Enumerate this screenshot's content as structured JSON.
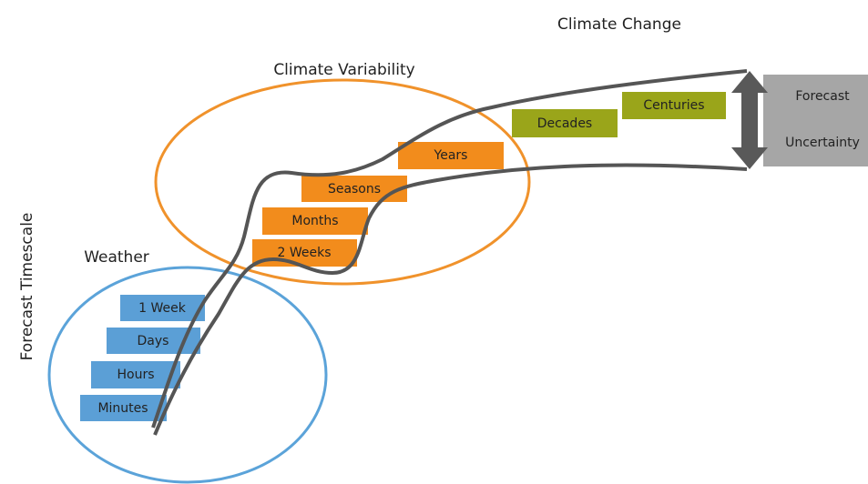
{
  "header": {
    "climate_change": "Climate Change",
    "climate_variability": "Climate Variability",
    "weather": "Weather",
    "axis_label": "Forecast Timescale"
  },
  "weather_boxes": [
    "1 Week",
    "Days",
    "Hours",
    "Minutes"
  ],
  "variability_boxes": [
    "Years",
    "Seasons",
    "Months",
    "2 Weeks"
  ],
  "change_boxes": [
    "Decades",
    "Centuries"
  ],
  "uncertainty": {
    "line1": "Forecast",
    "line2": "Uncertainty"
  }
}
